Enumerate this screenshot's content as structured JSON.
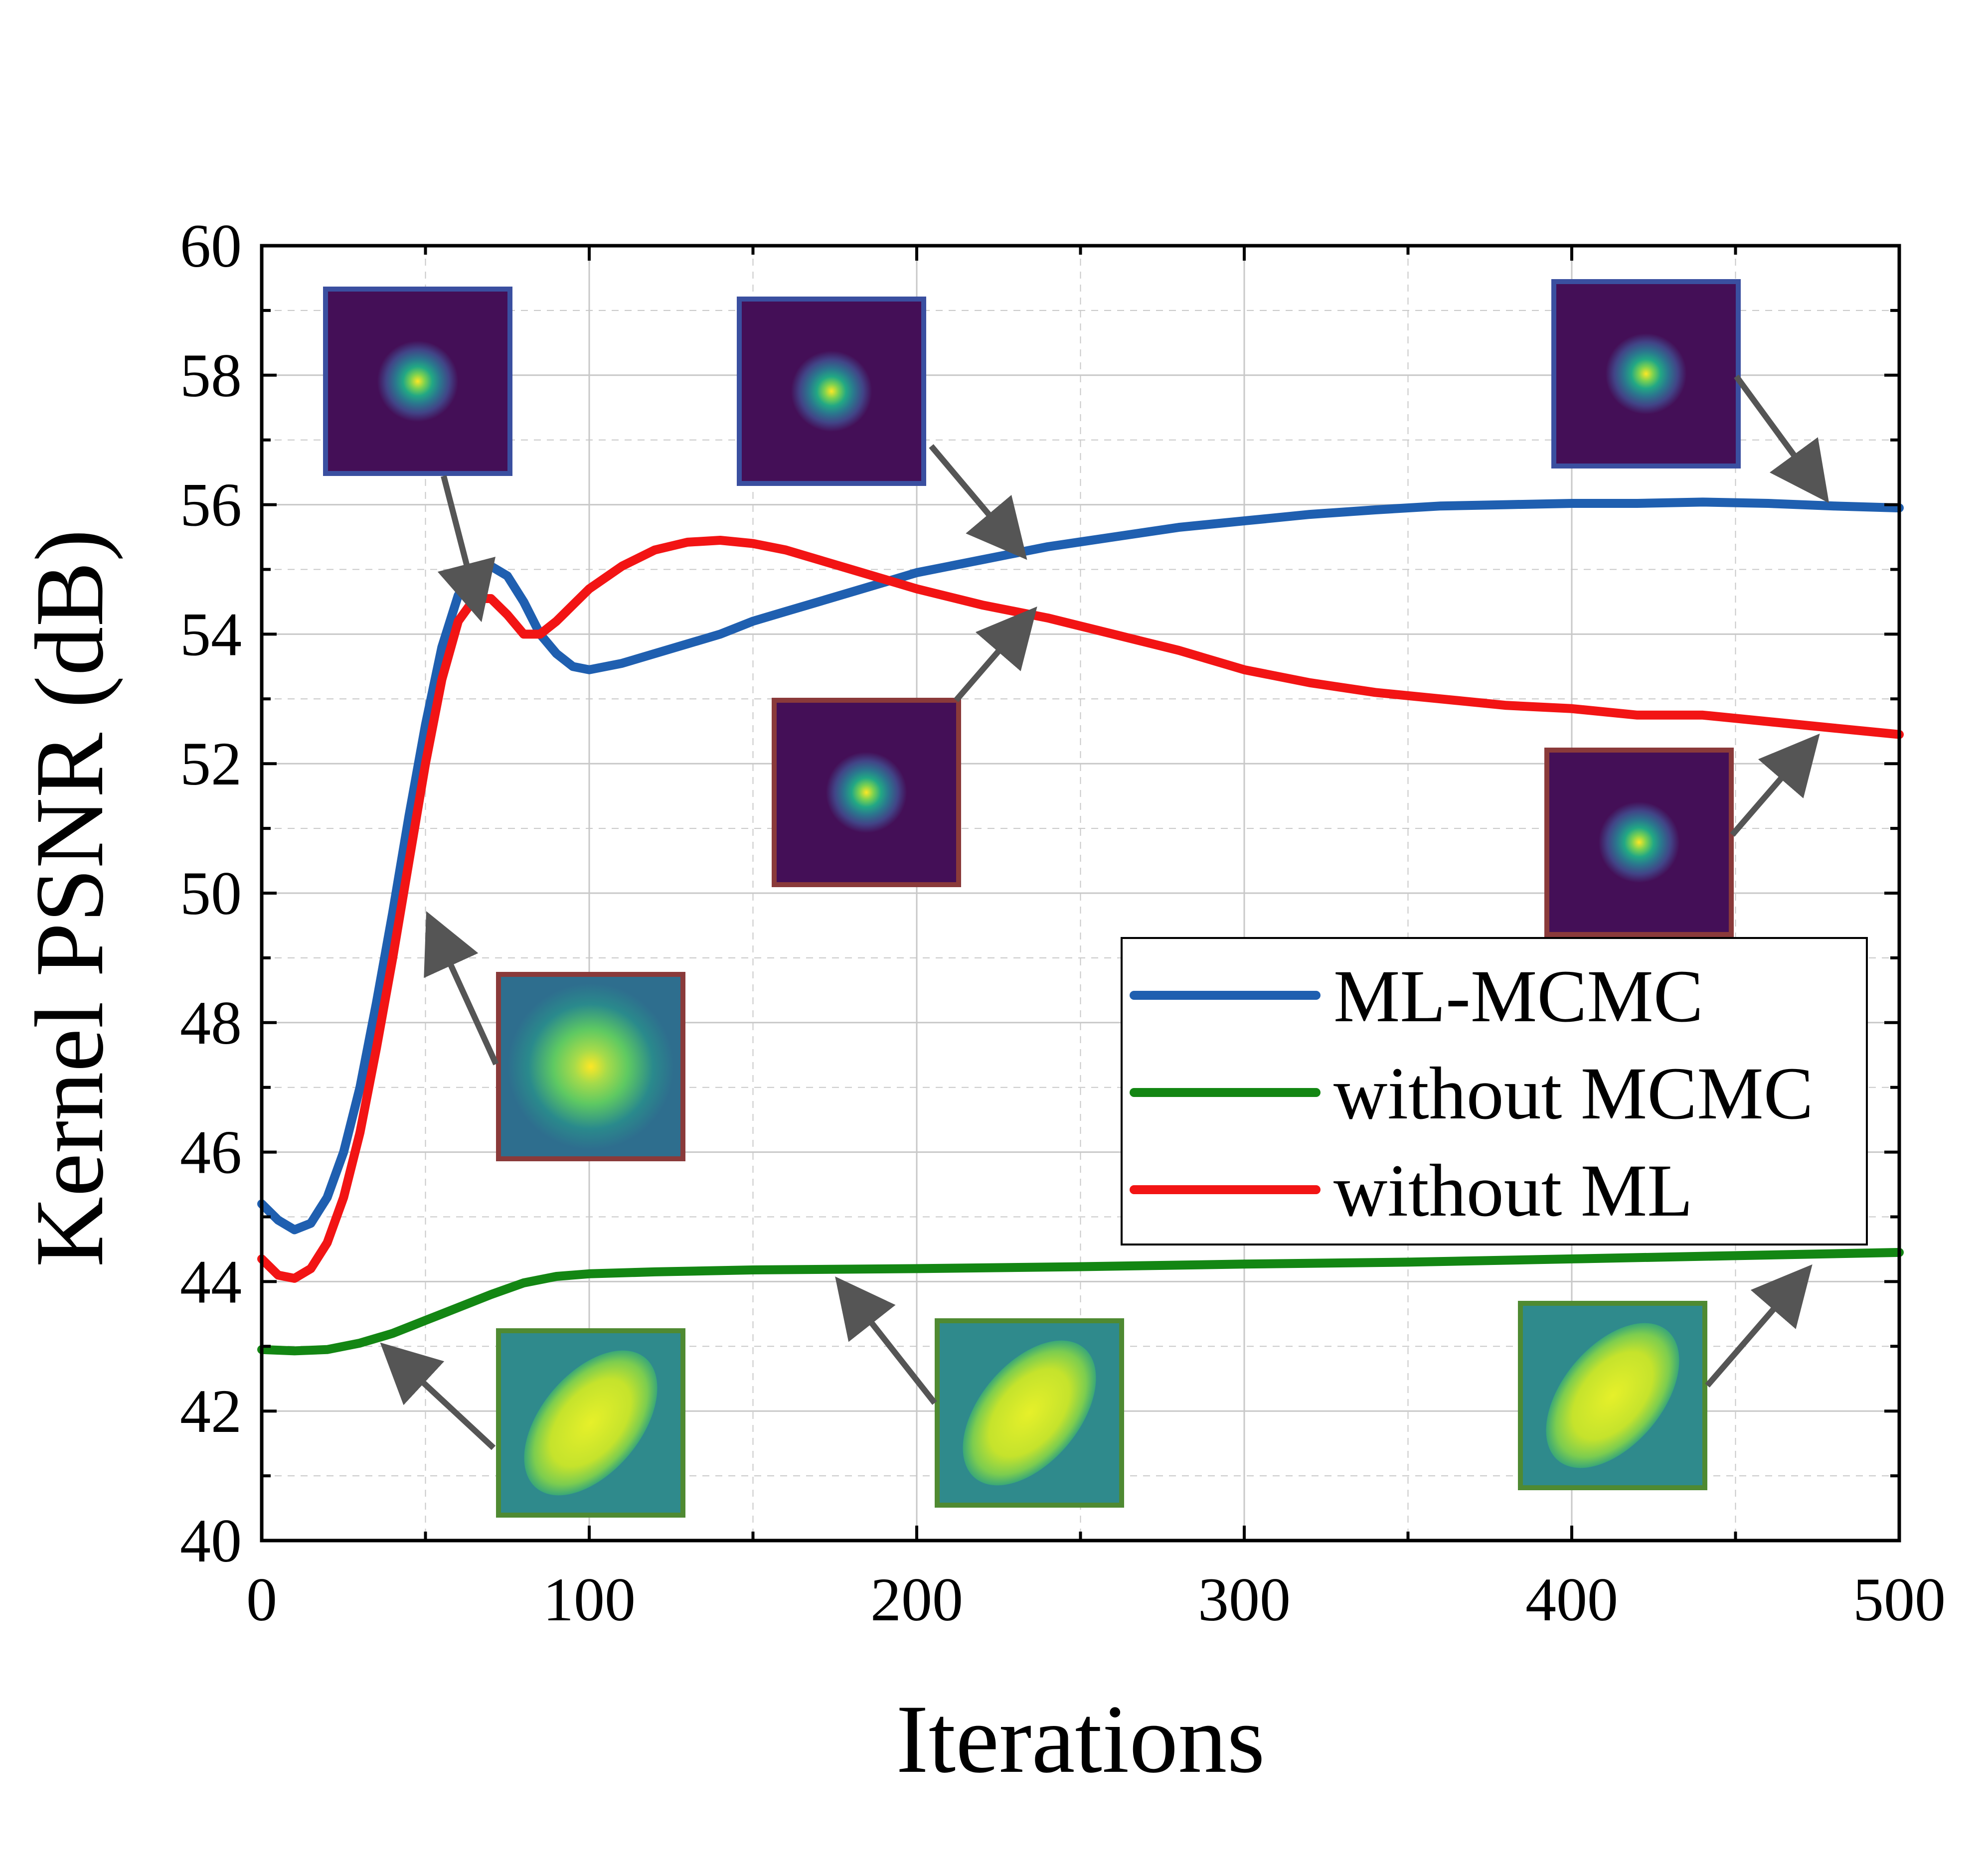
{
  "chart_data": {
    "type": "line",
    "title": "",
    "xlabel": "Iterations",
    "ylabel": "Kernel PSNR (dB)",
    "xlim": [
      0,
      500
    ],
    "ylim": [
      40,
      60
    ],
    "xticks": [
      0,
      100,
      200,
      300,
      400,
      500
    ],
    "xtick_labels": [
      "0",
      "100",
      "200",
      "300",
      "400",
      "500"
    ],
    "yticks": [
      40,
      42,
      44,
      46,
      48,
      50,
      52,
      54,
      56,
      58,
      60
    ],
    "ytick_labels": [
      "40",
      "42",
      "44",
      "46",
      "48",
      "50",
      "52",
      "54",
      "56",
      "58",
      "60"
    ],
    "grid": true,
    "legend_position": "center-right",
    "series": [
      {
        "name": "ML-MCMC",
        "color": "#1f5fb0",
        "x": [
          0,
          5,
          10,
          15,
          20,
          25,
          30,
          35,
          40,
          45,
          50,
          55,
          60,
          65,
          70,
          75,
          80,
          85,
          90,
          95,
          100,
          110,
          120,
          130,
          140,
          150,
          160,
          170,
          180,
          190,
          200,
          220,
          240,
          260,
          280,
          300,
          320,
          340,
          360,
          380,
          400,
          420,
          440,
          460,
          480,
          500
        ],
        "y": [
          45.2,
          44.95,
          44.8,
          44.9,
          45.3,
          46.0,
          47.0,
          48.3,
          49.7,
          51.2,
          52.6,
          53.8,
          54.6,
          55.0,
          55.05,
          54.9,
          54.5,
          54.0,
          53.7,
          53.5,
          53.45,
          53.55,
          53.7,
          53.85,
          54.0,
          54.2,
          54.35,
          54.5,
          54.65,
          54.8,
          54.95,
          55.15,
          55.35,
          55.5,
          55.65,
          55.75,
          55.85,
          55.92,
          55.98,
          56.0,
          56.02,
          56.02,
          56.04,
          56.02,
          55.98,
          55.95
        ]
      },
      {
        "name": "without MCMC",
        "color": "#138613",
        "x": [
          0,
          10,
          20,
          30,
          40,
          50,
          60,
          70,
          80,
          90,
          100,
          120,
          150,
          200,
          250,
          300,
          350,
          400,
          450,
          500
        ],
        "y": [
          42.95,
          42.93,
          42.95,
          43.05,
          43.2,
          43.4,
          43.6,
          43.8,
          43.98,
          44.08,
          44.12,
          44.15,
          44.18,
          44.2,
          44.23,
          44.27,
          44.3,
          44.35,
          44.4,
          44.45
        ]
      },
      {
        "name": "without ML",
        "color": "#f21414",
        "x": [
          0,
          5,
          10,
          15,
          20,
          25,
          30,
          35,
          40,
          45,
          50,
          55,
          60,
          65,
          70,
          75,
          80,
          85,
          90,
          95,
          100,
          110,
          120,
          130,
          140,
          150,
          160,
          170,
          180,
          190,
          200,
          220,
          240,
          260,
          280,
          300,
          320,
          340,
          360,
          380,
          400,
          420,
          440,
          460,
          480,
          500
        ],
        "y": [
          44.35,
          44.1,
          44.05,
          44.2,
          44.6,
          45.3,
          46.3,
          47.6,
          49.0,
          50.5,
          52.0,
          53.3,
          54.2,
          54.55,
          54.55,
          54.3,
          54.0,
          54.0,
          54.2,
          54.45,
          54.7,
          55.05,
          55.3,
          55.42,
          55.45,
          55.4,
          55.3,
          55.15,
          55.0,
          54.85,
          54.7,
          54.45,
          54.25,
          54.0,
          53.75,
          53.45,
          53.25,
          53.1,
          53.0,
          52.9,
          52.85,
          52.75,
          52.75,
          52.65,
          52.55,
          52.45
        ]
      }
    ],
    "inset_kernels": [
      {
        "style": "focused",
        "border": "#3a4fa0",
        "from": "ML-MCMC"
      },
      {
        "style": "focused",
        "border": "#3a4fa0",
        "from": "ML-MCMC"
      },
      {
        "style": "focused",
        "border": "#3a4fa0",
        "from": "ML-MCMC"
      },
      {
        "style": "focused",
        "border": "#8a3a3a",
        "from": "without ML"
      },
      {
        "style": "diffuse",
        "border": "#8a3a3a",
        "from": "without ML"
      },
      {
        "style": "focused",
        "border": "#8a3a3a",
        "from": "without ML"
      },
      {
        "style": "elongated",
        "border": "#4f8a32",
        "from": "without MCMC"
      },
      {
        "style": "elongated",
        "border": "#4f8a32",
        "from": "without MCMC"
      },
      {
        "style": "elongated",
        "border": "#4f8a32",
        "from": "without MCMC"
      }
    ]
  }
}
